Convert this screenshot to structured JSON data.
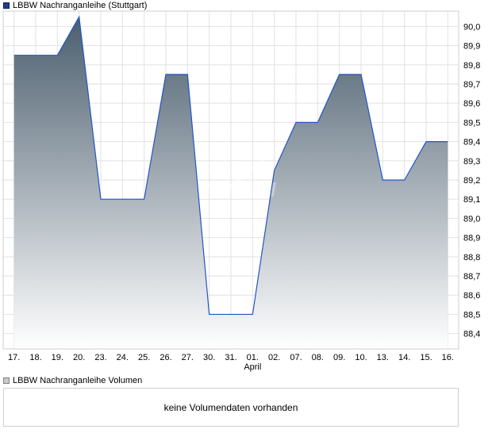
{
  "chart_data": {
    "type": "area",
    "title": "",
    "xlabel": "",
    "ylabel": "",
    "x": [
      "17.",
      "18.",
      "19.",
      "20.",
      "23.",
      "24.",
      "25.",
      "26.",
      "27.",
      "30.",
      "31.",
      "01.",
      "02.",
      "07.",
      "08.",
      "09.",
      "10.",
      "13.",
      "14.",
      "15.",
      "16."
    ],
    "month_label": "April",
    "series": [
      {
        "name": "LBBW Nachranganleihe (Stuttgart)",
        "values": [
          89.85,
          89.85,
          89.85,
          90.05,
          89.1,
          89.1,
          89.1,
          89.75,
          89.75,
          88.5,
          88.5,
          88.5,
          89.25,
          89.5,
          89.5,
          89.75,
          89.75,
          89.2,
          89.2,
          89.4,
          89.4
        ]
      }
    ],
    "y_ticks": [
      "90,0",
      "89,9",
      "89,8",
      "89,7",
      "89,6",
      "89,5",
      "89,4",
      "89,3",
      "89,2",
      "89,1",
      "89,0",
      "88,9",
      "88,8",
      "88,7",
      "88,6",
      "88,5",
      "88,4"
    ],
    "ylim": [
      88.32,
      90.08
    ],
    "grid": true,
    "line_color": "#2255c4",
    "fill_top_color": "#4b5e6e",
    "fill_bottom_color": "#ffffff"
  },
  "legend": {
    "price_label": "LBBW Nachranganleihe (Stuttgart)",
    "volume_label": "LBBW Nachranganleihe Volumen"
  },
  "volume": {
    "message": "keine Volumendaten vorhanden"
  },
  "watermark": {
    "line1": "EN",
    "line2": "CH"
  }
}
